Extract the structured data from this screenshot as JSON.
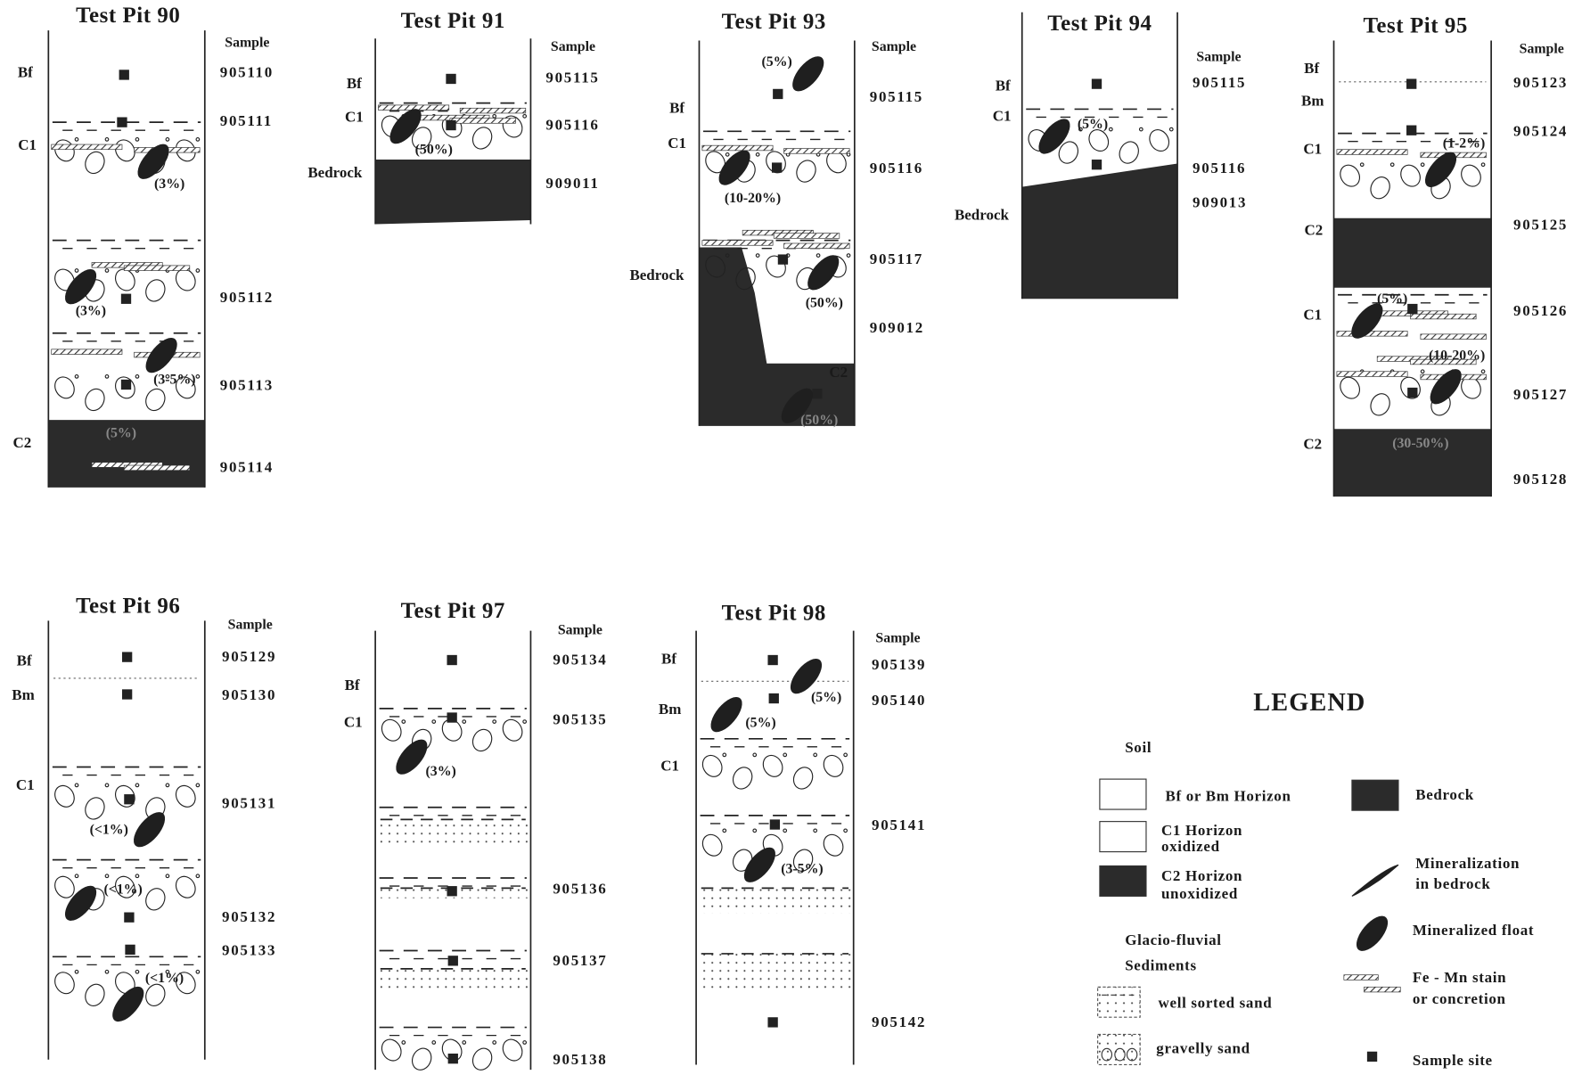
{
  "pits": [
    {
      "title": "Test Pit 90",
      "sample_header": "Sample",
      "horizons": [
        "Bf",
        "C1",
        "C2"
      ],
      "samples": [
        "905110",
        "905111",
        "905112",
        "905113",
        "905114"
      ],
      "percents": [
        "(3%)",
        "(3%)",
        "(3-5%)",
        "(5%)"
      ]
    },
    {
      "title": "Test Pit 91",
      "sample_header": "Sample",
      "horizons": [
        "Bf",
        "C1",
        "Bedrock"
      ],
      "samples": [
        "905115",
        "905116",
        "909011"
      ],
      "percents": [
        "(50%)"
      ]
    },
    {
      "title": "Test Pit 93",
      "sample_header": "Sample",
      "horizons": [
        "Bf",
        "C1",
        "Bedrock",
        "C2"
      ],
      "samples": [
        "905115",
        "905116",
        "905117",
        "909012"
      ],
      "percents": [
        "(5%)",
        "(10-20%)",
        "(50%)",
        "(50%)"
      ]
    },
    {
      "title": "Test Pit 94",
      "sample_header": "Sample",
      "horizons": [
        "Bf",
        "C1",
        "Bedrock"
      ],
      "samples": [
        "905115",
        "905116",
        "909013"
      ],
      "percents": [
        "(5%)"
      ]
    },
    {
      "title": "Test Pit 95",
      "sample_header": "Sample",
      "horizons": [
        "Bf",
        "Bm",
        "C1",
        "C2",
        "C1",
        "C2"
      ],
      "samples": [
        "905123",
        "905124",
        "905125",
        "905126",
        "905127",
        "905128"
      ],
      "percents": [
        "(1-2%)",
        "(5%)",
        "(10-20%)",
        "(30-50%)"
      ]
    },
    {
      "title": "Test Pit 96",
      "sample_header": "Sample",
      "horizons": [
        "Bf",
        "Bm",
        "C1"
      ],
      "samples": [
        "905129",
        "905130",
        "905131",
        "905132",
        "905133"
      ],
      "percents": [
        "(<1%)",
        "(<1%)",
        "(<1%)"
      ]
    },
    {
      "title": "Test Pit 97",
      "sample_header": "Sample",
      "horizons": [
        "Bf",
        "C1"
      ],
      "samples": [
        "905134",
        "905135",
        "905136",
        "905137",
        "905138"
      ],
      "percents": [
        "(3%)"
      ]
    },
    {
      "title": "Test Pit 98",
      "sample_header": "Sample",
      "horizons": [
        "Bf",
        "Bm",
        "C1"
      ],
      "samples": [
        "905139",
        "905140",
        "905141",
        "905142"
      ],
      "percents": [
        "(5%)",
        "(5%)",
        "(3-5%)"
      ]
    }
  ],
  "legend": {
    "title": "LEGEND",
    "soil": "Soil",
    "bf_bm": "Bf or Bm Horizon",
    "c1": [
      "C1 Horizon",
      "oxidized"
    ],
    "c2": [
      "C2 Horizon",
      "unoxidized"
    ],
    "bedrock": "Bedrock",
    "mineralization": [
      "Mineralization",
      "in bedrock"
    ],
    "float": "Mineralized float",
    "stain": [
      "Fe - Mn stain",
      "or concretion"
    ],
    "sediments": [
      "Glacio-fluvial",
      "Sediments"
    ],
    "sand": "well sorted sand",
    "gravelly": "gravelly sand",
    "sample_site": "Sample site"
  }
}
